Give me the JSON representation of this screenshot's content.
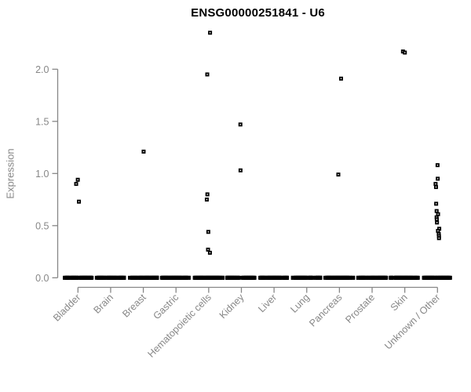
{
  "title": "ENSG00000251841 - U6",
  "chart_data": {
    "type": "scatter",
    "subtype": "strip-plot-jittered",
    "title": "ENSG00000251841 - U6",
    "xlabel": "",
    "ylabel": "Expression",
    "ylim": [
      0.0,
      2.35
    ],
    "yticks": [
      "0.0",
      "0.5",
      "1.0",
      "1.5",
      "2.0"
    ],
    "grid": false,
    "legend": false,
    "point_style": "small-open-black-square",
    "colors": {
      "point": "#000000",
      "axis": "#878787",
      "tick_label": "#878787",
      "title": "#000000",
      "background": "#ffffff"
    },
    "categories": [
      "Bladder",
      "Brain",
      "Breast",
      "Gastric",
      "Hematopoietic cells",
      "Kidney",
      "Liver",
      "Lung",
      "Pancreas",
      "Prostate",
      "Skin",
      "Unknown / Other"
    ],
    "series": [
      {
        "category": "Bladder",
        "nonzero_values": [
          0.94,
          0.9,
          0.73
        ],
        "zero_count": 50
      },
      {
        "category": "Brain",
        "nonzero_values": [],
        "zero_count": 50
      },
      {
        "category": "Breast",
        "nonzero_values": [
          1.21
        ],
        "zero_count": 50
      },
      {
        "category": "Gastric",
        "nonzero_values": [],
        "zero_count": 50
      },
      {
        "category": "Hematopoietic cells",
        "nonzero_values": [
          2.35,
          1.95,
          0.8,
          0.75,
          0.44,
          0.27,
          0.24
        ],
        "zero_count": 55
      },
      {
        "category": "Kidney",
        "nonzero_values": [
          1.47,
          1.03
        ],
        "zero_count": 50
      },
      {
        "category": "Liver",
        "nonzero_values": [],
        "zero_count": 50
      },
      {
        "category": "Lung",
        "nonzero_values": [],
        "zero_count": 50
      },
      {
        "category": "Pancreas",
        "nonzero_values": [
          1.91,
          0.99
        ],
        "zero_count": 50
      },
      {
        "category": "Prostate",
        "nonzero_values": [],
        "zero_count": 50
      },
      {
        "category": "Skin",
        "nonzero_values": [
          2.17,
          2.16
        ],
        "zero_count": 50
      },
      {
        "category": "Unknown / Other",
        "nonzero_values": [
          1.08,
          0.95,
          0.9,
          0.87,
          0.71,
          0.64,
          0.61,
          0.58,
          0.56,
          0.53,
          0.47,
          0.45,
          0.42,
          0.4,
          0.38
        ],
        "zero_count": 55
      }
    ]
  }
}
